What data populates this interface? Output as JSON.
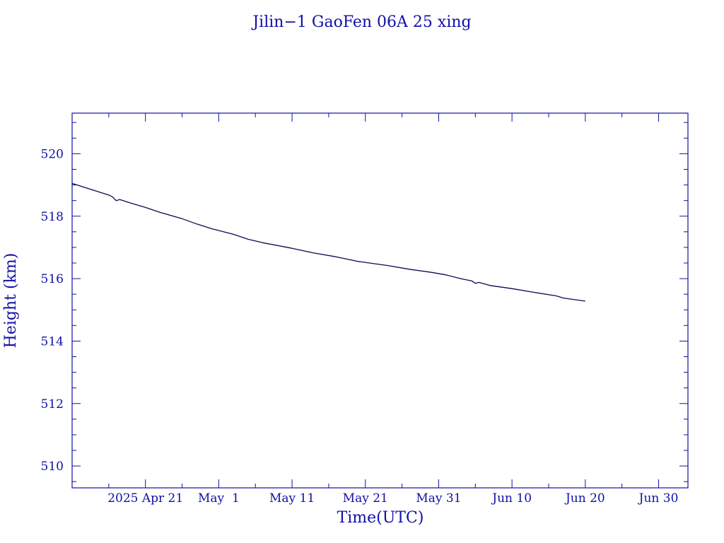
{
  "colors": {
    "axis": "#1010a8",
    "text": "#1010a8",
    "series": "#0a0a50",
    "background": "#ffffff"
  },
  "chart_data": {
    "type": "line",
    "title": "Jilin−1 GaoFen 06A 25 xing",
    "xlabel": "Time(UTC)",
    "ylabel": "Height (km)",
    "x_axis_kind": "date",
    "xlim": [
      "2025-04-11",
      "2025-07-04"
    ],
    "ylim": [
      509.3,
      521.3
    ],
    "grid": false,
    "x_ticks": [
      {
        "date": "2025-04-21",
        "label": "2025 Apr 21"
      },
      {
        "date": "2025-05-01",
        "label": "May  1"
      },
      {
        "date": "2025-05-11",
        "label": "May 11"
      },
      {
        "date": "2025-05-21",
        "label": "May 21"
      },
      {
        "date": "2025-05-31",
        "label": "May 31"
      },
      {
        "date": "2025-06-10",
        "label": "Jun 10"
      },
      {
        "date": "2025-06-20",
        "label": "Jun 20"
      },
      {
        "date": "2025-06-30",
        "label": "Jun 30"
      }
    ],
    "y_ticks": [
      {
        "value": 510,
        "label": "510"
      },
      {
        "value": 512,
        "label": "512"
      },
      {
        "value": 514,
        "label": "514"
      },
      {
        "value": 516,
        "label": "516"
      },
      {
        "value": 518,
        "label": "518"
      },
      {
        "value": 520,
        "label": "520"
      }
    ],
    "series": [
      {
        "points": [
          [
            "2025-04-11",
            519.05
          ],
          [
            "2025-04-13",
            518.9
          ],
          [
            "2025-04-15",
            518.75
          ],
          [
            "2025-04-16",
            518.68
          ],
          [
            "2025-04-16T12:00",
            518.62
          ],
          [
            "2025-04-17",
            518.5
          ],
          [
            "2025-04-17T12:00",
            518.53
          ],
          [
            "2025-04-19",
            518.42
          ],
          [
            "2025-04-21",
            518.28
          ],
          [
            "2025-04-23",
            518.12
          ],
          [
            "2025-04-26",
            517.92
          ],
          [
            "2025-04-28",
            517.75
          ],
          [
            "2025-04-30",
            517.6
          ],
          [
            "2025-05-03",
            517.42
          ],
          [
            "2025-05-05",
            517.26
          ],
          [
            "2025-05-07",
            517.15
          ],
          [
            "2025-05-11",
            516.97
          ],
          [
            "2025-05-14",
            516.82
          ],
          [
            "2025-05-17",
            516.7
          ],
          [
            "2025-05-20",
            516.55
          ],
          [
            "2025-05-24",
            516.42
          ],
          [
            "2025-05-27",
            516.3
          ],
          [
            "2025-05-30",
            516.2
          ],
          [
            "2025-06-01",
            516.12
          ],
          [
            "2025-06-03",
            516.0
          ],
          [
            "2025-06-04T12:00",
            515.93
          ],
          [
            "2025-06-05",
            515.85
          ],
          [
            "2025-06-05T12:00",
            515.88
          ],
          [
            "2025-06-07",
            515.78
          ],
          [
            "2025-06-10",
            515.68
          ],
          [
            "2025-06-13",
            515.56
          ],
          [
            "2025-06-16",
            515.45
          ],
          [
            "2025-06-17",
            515.38
          ],
          [
            "2025-06-20",
            515.28
          ]
        ]
      }
    ]
  }
}
